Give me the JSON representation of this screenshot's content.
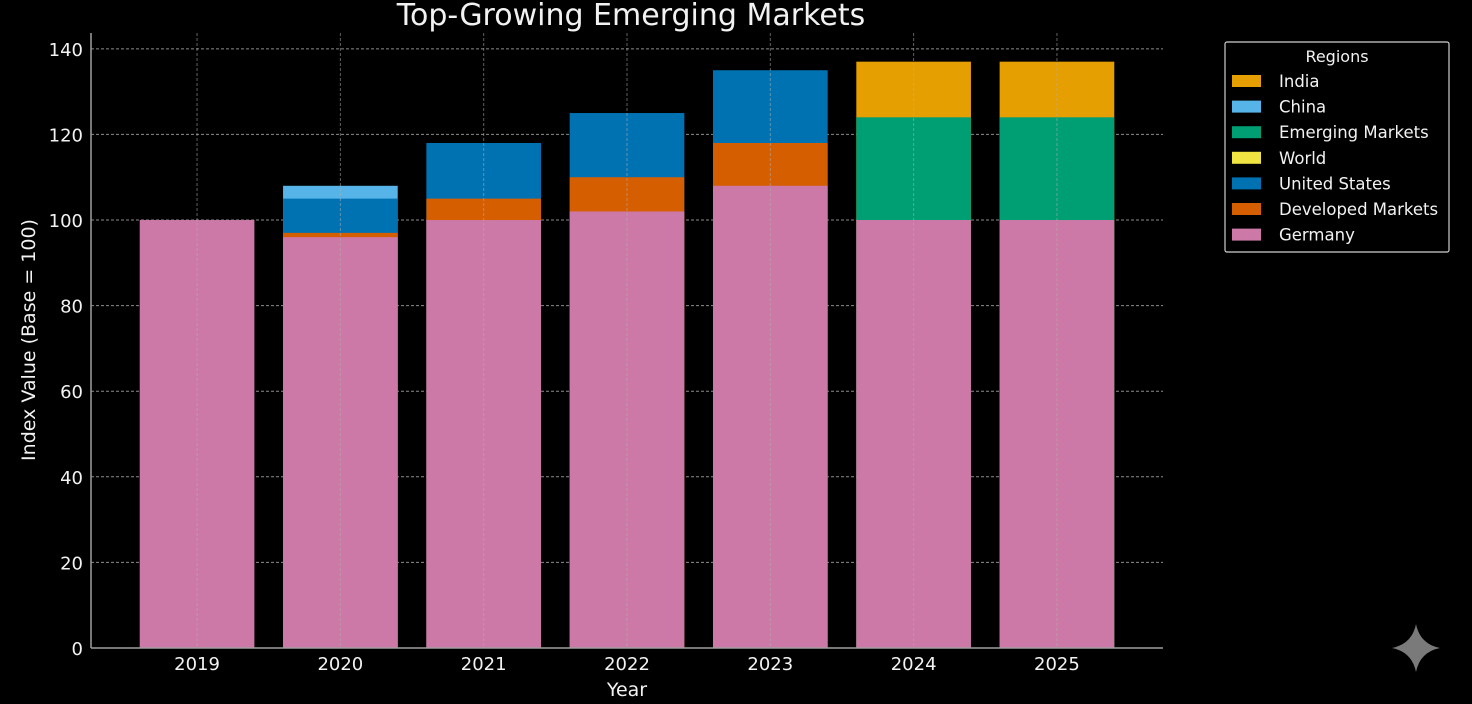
{
  "chart_data": {
    "type": "bar",
    "bar_mode": "overlapping",
    "title": "Top-Growing Emerging Markets",
    "xlabel": "Year",
    "ylabel": "Index Value (Base = 100)",
    "categories": [
      "2019",
      "2020",
      "2021",
      "2022",
      "2023",
      "2024",
      "2025"
    ],
    "ylim": [
      0,
      143.7
    ],
    "yticks": [
      0,
      20,
      40,
      60,
      80,
      100,
      120,
      140
    ],
    "grid": true,
    "legend": {
      "title": "Regions",
      "placement": "outside-top-right"
    },
    "series": [
      {
        "name": "India",
        "color": "#E69F00",
        "values": [
          null,
          null,
          null,
          null,
          null,
          137,
          137
        ]
      },
      {
        "name": "China",
        "color": "#56B4E9",
        "values": [
          null,
          108,
          null,
          null,
          null,
          null,
          null
        ]
      },
      {
        "name": "Emerging Markets",
        "color": "#009E73",
        "values": [
          null,
          null,
          null,
          null,
          null,
          124,
          124
        ]
      },
      {
        "name": "World",
        "color": "#F0E442",
        "values": [
          null,
          null,
          null,
          null,
          null,
          null,
          null
        ]
      },
      {
        "name": "United States",
        "color": "#0072B2",
        "values": [
          null,
          105,
          118,
          125,
          135,
          null,
          null
        ]
      },
      {
        "name": "Developed Markets",
        "color": "#D55E00",
        "values": [
          null,
          97,
          105,
          110,
          118,
          null,
          null
        ]
      },
      {
        "name": "Germany",
        "color": "#CC79A7",
        "values": [
          100,
          96,
          100,
          102,
          108,
          100,
          100
        ]
      }
    ]
  },
  "colors": {
    "background": "#000000",
    "text": "#f2f2f2",
    "grid": "#b0b0b0",
    "axis": "#a0a0a0"
  },
  "watermark_icon": "sparkle-icon"
}
